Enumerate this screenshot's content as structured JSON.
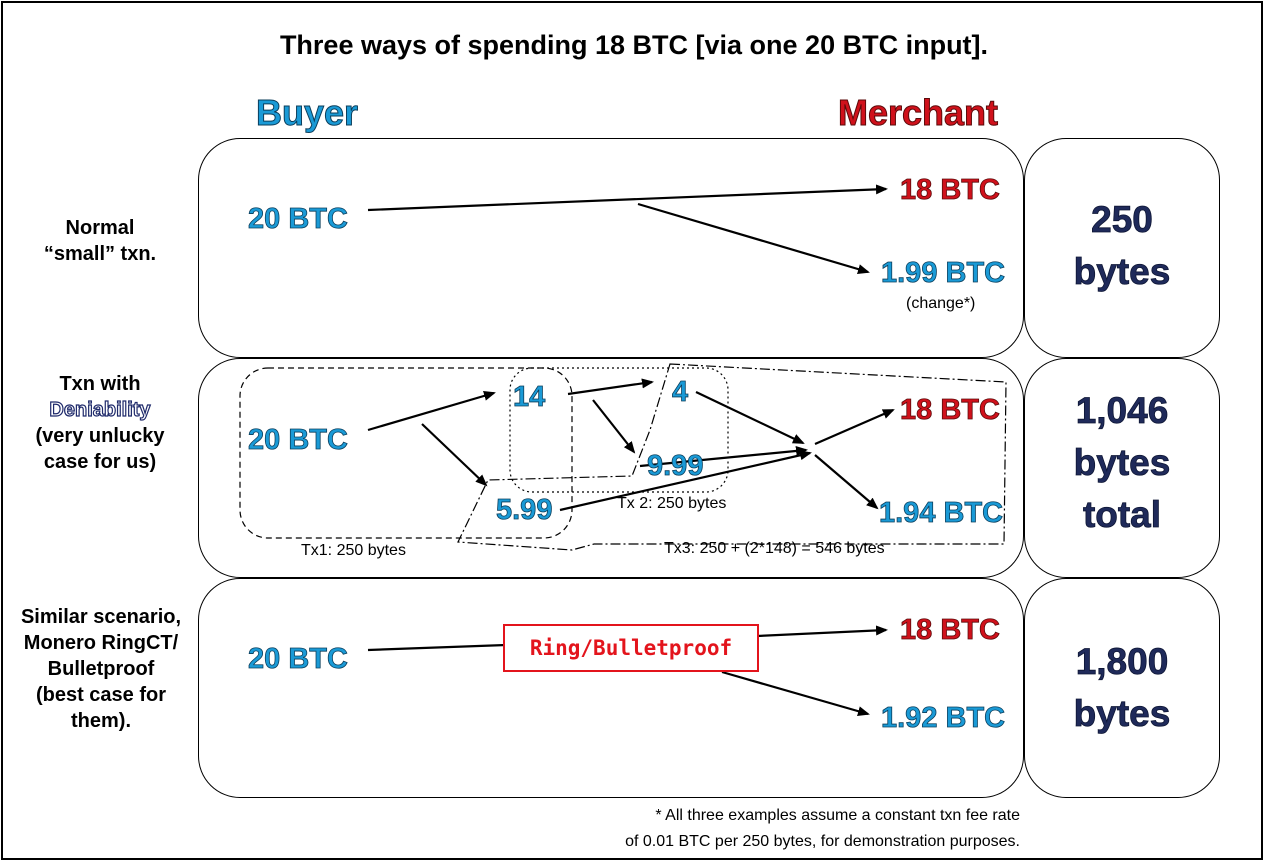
{
  "title": "Three ways of spending 18 BTC [via one 20 BTC input].",
  "headers": {
    "buyer": "Buyer",
    "merchant": "Merchant"
  },
  "rows": [
    {
      "label_lines": [
        "Normal",
        "“small” txn."
      ],
      "input": "20 BTC",
      "output_merchant": "18 BTC",
      "output_change": "1.99 BTC",
      "change_note": "(change*)",
      "bytes_lines": [
        "250",
        "bytes"
      ]
    },
    {
      "label_lines": [
        "Txn with",
        "Deniability",
        "(very unlucky",
        "case for us)"
      ],
      "input": "20 BTC",
      "intermediate": {
        "a": "14",
        "b": "4",
        "c": "9.99",
        "d": "5.99"
      },
      "output_merchant": "18 BTC",
      "output_change": "1.94 BTC",
      "tx_labels": {
        "tx1": "Tx1: 250 bytes",
        "tx2": "Tx 2: 250 bytes",
        "tx3": "Tx3: 250 + (2*148) = 546 bytes"
      },
      "bytes_lines": [
        "1,046",
        "bytes",
        "total"
      ]
    },
    {
      "label_lines": [
        "Similar scenario,",
        "Monero RingCT/",
        "Bulletproof",
        "(best case for",
        "them)."
      ],
      "input": "20 BTC",
      "ring_label": "Ring/Bulletproof",
      "output_merchant": "18 BTC",
      "output_change": "1.92 BTC",
      "bytes_lines": [
        "1,800",
        "bytes"
      ]
    }
  ],
  "footnote_lines": [
    "* All three examples  assume a constant  txn fee rate",
    "of 0.01 BTC per 250 bytes, for demonstration  purposes."
  ],
  "colors": {
    "buyer_blue": "#1a9ad6",
    "merchant_red": "#d0111b",
    "bytes_navy": "#1f2a5a",
    "ring_red": "#e3141c"
  }
}
